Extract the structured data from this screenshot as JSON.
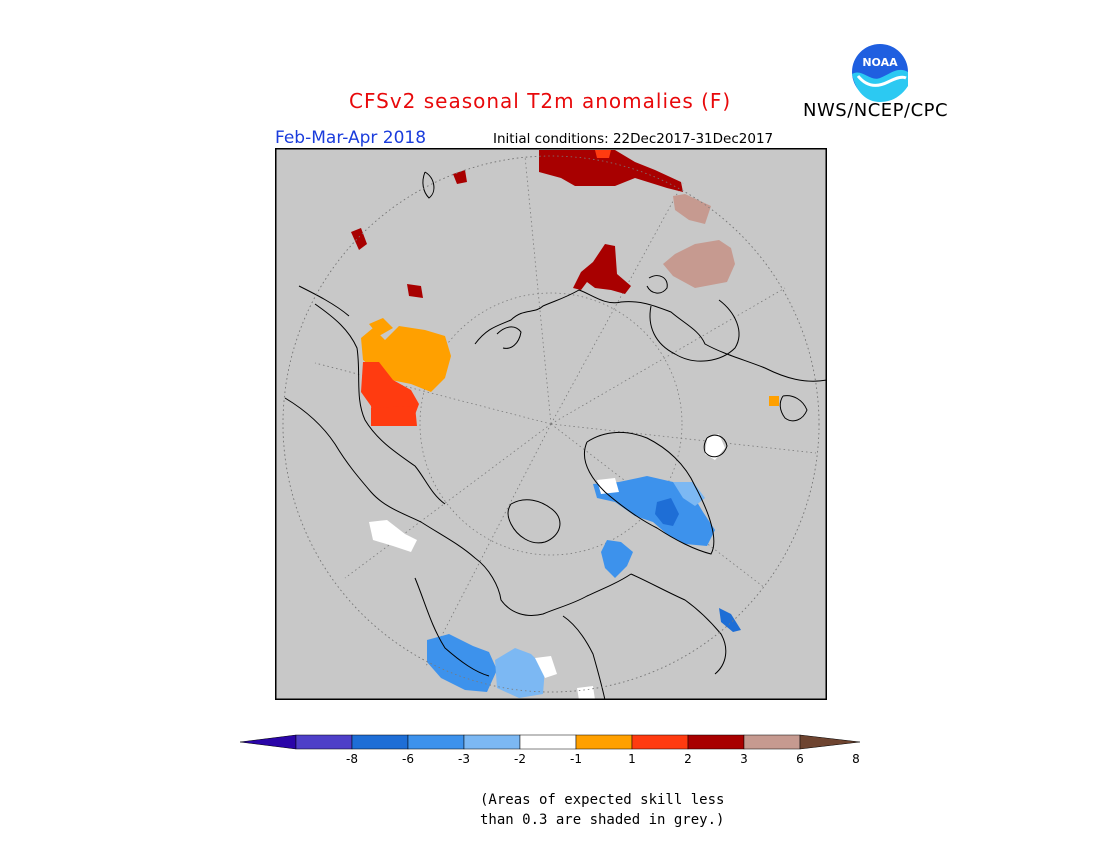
{
  "header": {
    "title": "CFSv2 seasonal T2m anomalies (F)",
    "agency": "NWS/NCEP/CPC",
    "logo_text": "NOAA",
    "season": "Feb-Mar-Apr 2018",
    "initial_conditions": "Initial conditions: 22Dec2017-31Dec2017"
  },
  "colorbar": {
    "ticks": [
      "-8",
      "-6",
      "-3",
      "-2",
      "-1",
      "1",
      "2",
      "3",
      "6",
      "8"
    ],
    "colors": [
      "#2a05a8",
      "#4e3fc8",
      "#1e6ed6",
      "#3d92ec",
      "#7cb8f3",
      "#ffffff",
      "#ffa000",
      "#ff3b10",
      "#a80000",
      "#c69a90",
      "#6e4430"
    ]
  },
  "footnote": {
    "line1": "(Areas of expected skill less",
    "line2": "than 0.3 are shaded in grey.)"
  },
  "colors": {
    "background_grey": "#c8c8c8",
    "title_red": "#e8090b",
    "season_blue": "#1a3cdc"
  }
}
